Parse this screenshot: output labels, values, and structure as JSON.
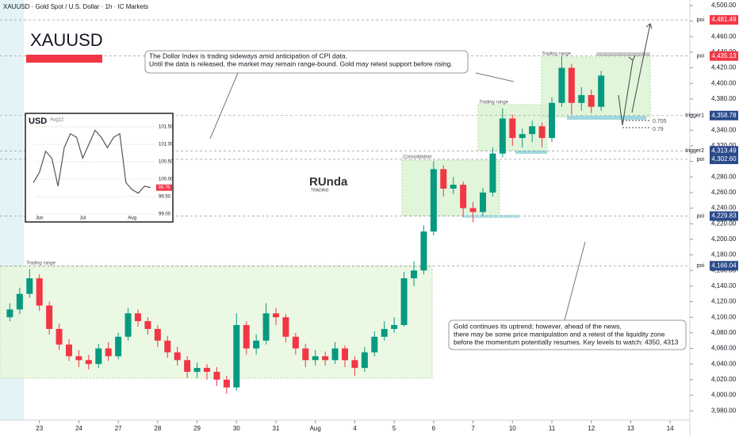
{
  "header": {
    "symbol_line": "XAUUSD · Gold Spot / U.S. Dollar · 1h · IC Markets",
    "symbol": "XAUUSD"
  },
  "logo": {
    "name": "RUnda",
    "tagline": "TRADING"
  },
  "chart_data": [
    {
      "type": "candlestick",
      "up_color": "#089981",
      "down_color": "#f23645",
      "xlim": [
        -1,
        16.5
      ],
      "ylim": [
        3968,
        4507
      ],
      "x": [
        -0.75,
        -0.5,
        -0.25,
        0,
        0.25,
        0.5,
        0.75,
        1,
        1.25,
        1.5,
        1.75,
        2,
        2.25,
        2.5,
        2.75,
        3,
        3.25,
        3.5,
        3.75,
        4,
        4.25,
        4.5,
        4.75,
        5,
        5.25,
        5.5,
        5.75,
        6,
        6.25,
        6.5,
        6.75,
        7,
        7.25,
        7.5,
        7.75,
        8,
        8.25,
        8.5,
        8.75,
        9,
        9.25,
        9.5,
        9.75,
        10,
        10.25,
        10.5,
        10.75,
        11,
        11.25,
        11.5,
        11.75,
        12,
        12.25,
        12.5,
        12.75,
        13,
        13.25,
        13.5,
        13.75,
        14,
        14.25
      ],
      "ohlc": [
        [
          4100,
          4118,
          4095,
          4110
        ],
        [
          4110,
          4138,
          4104,
          4130
        ],
        [
          4130,
          4162,
          4125,
          4150
        ],
        [
          4150,
          4155,
          4108,
          4115
        ],
        [
          4115,
          4120,
          4078,
          4085
        ],
        [
          4085,
          4092,
          4058,
          4065
        ],
        [
          4065,
          4072,
          4044,
          4050
        ],
        [
          4050,
          4058,
          4036,
          4045
        ],
        [
          4045,
          4052,
          4033,
          4040
        ],
        [
          4040,
          4066,
          4035,
          4060
        ],
        [
          4060,
          4068,
          4044,
          4050
        ],
        [
          4050,
          4080,
          4046,
          4075
        ],
        [
          4075,
          4112,
          4070,
          4105
        ],
        [
          4105,
          4110,
          4088,
          4095
        ],
        [
          4095,
          4100,
          4078,
          4085
        ],
        [
          4085,
          4090,
          4062,
          4070
        ],
        [
          4070,
          4076,
          4048,
          4055
        ],
        [
          4055,
          4062,
          4038,
          4045
        ],
        [
          4045,
          4050,
          4022,
          4030
        ],
        [
          4030,
          4042,
          4022,
          4035
        ],
        [
          4035,
          4040,
          4020,
          4030
        ],
        [
          4030,
          4036,
          4012,
          4020
        ],
        [
          4020,
          4025,
          4002,
          4010
        ],
        [
          4010,
          4105,
          4006,
          4090
        ],
        [
          4090,
          4095,
          4052,
          4060
        ],
        [
          4060,
          4078,
          4052,
          4070
        ],
        [
          4070,
          4118,
          4065,
          4105
        ],
        [
          4105,
          4112,
          4090,
          4100
        ],
        [
          4100,
          4104,
          4068,
          4075
        ],
        [
          4075,
          4080,
          4052,
          4060
        ],
        [
          4060,
          4066,
          4036,
          4045
        ],
        [
          4045,
          4058,
          4038,
          4050
        ],
        [
          4050,
          4056,
          4038,
          4045
        ],
        [
          4045,
          4068,
          4040,
          4060
        ],
        [
          4060,
          4064,
          4036,
          4045
        ],
        [
          4045,
          4050,
          4025,
          4035
        ],
        [
          4035,
          4062,
          4030,
          4055
        ],
        [
          4055,
          4082,
          4050,
          4075
        ],
        [
          4075,
          4095,
          4070,
          4085
        ],
        [
          4085,
          4100,
          4080,
          4090
        ],
        [
          4090,
          4158,
          4088,
          4150
        ],
        [
          4150,
          4172,
          4140,
          4160
        ],
        [
          4160,
          4218,
          4155,
          4210
        ],
        [
          4210,
          4300,
          4205,
          4290
        ],
        [
          4290,
          4295,
          4255,
          4265
        ],
        [
          4265,
          4280,
          4258,
          4270
        ],
        [
          4270,
          4274,
          4228,
          4240
        ],
        [
          4240,
          4248,
          4222,
          4235
        ],
        [
          4235,
          4266,
          4230,
          4260
        ],
        [
          4260,
          4318,
          4255,
          4310
        ],
        [
          4310,
          4368,
          4305,
          4355
        ],
        [
          4355,
          4360,
          4320,
          4330
        ],
        [
          4330,
          4342,
          4318,
          4335
        ],
        [
          4335,
          4352,
          4325,
          4345
        ],
        [
          4345,
          4350,
          4318,
          4330
        ],
        [
          4330,
          4382,
          4325,
          4375
        ],
        [
          4375,
          4435,
          4370,
          4420
        ],
        [
          4420,
          4425,
          4360,
          4375
        ],
        [
          4375,
          4395,
          4365,
          4385
        ],
        [
          4385,
          4392,
          4362,
          4370
        ],
        [
          4370,
          4416,
          4365,
          4410
        ]
      ],
      "xticks": [
        {
          "value": 0,
          "label": "23"
        },
        {
          "value": 1,
          "label": "24"
        },
        {
          "value": 2,
          "label": "27"
        },
        {
          "value": 3,
          "label": "28"
        },
        {
          "value": 4,
          "label": "29"
        },
        {
          "value": 5,
          "label": "30"
        },
        {
          "value": 6,
          "label": "31"
        },
        {
          "value": 7,
          "label": "Aug"
        },
        {
          "value": 8,
          "label": "4"
        },
        {
          "value": 9,
          "label": "5"
        },
        {
          "value": 10,
          "label": "6"
        },
        {
          "value": 11,
          "label": "7"
        },
        {
          "value": 12,
          "label": "10"
        },
        {
          "value": 13,
          "label": "11"
        },
        {
          "value": 14,
          "label": "12"
        },
        {
          "value": 15,
          "label": "13"
        },
        {
          "value": 16,
          "label": "14"
        }
      ],
      "yticks": [
        {
          "value": 3980,
          "label": "3,980.00"
        },
        {
          "value": 4000,
          "label": "4,000.00"
        },
        {
          "value": 4020,
          "label": "4,020.00"
        },
        {
          "value": 4040,
          "label": "4,040.00"
        },
        {
          "value": 4060,
          "label": "4,060.00"
        },
        {
          "value": 4080,
          "label": "4,080.00"
        },
        {
          "value": 4100,
          "label": "4,100.00"
        },
        {
          "value": 4120,
          "label": "4,120.00"
        },
        {
          "value": 4140,
          "label": "4,140.00"
        },
        {
          "value": 4160,
          "label": "4,160.00"
        },
        {
          "value": 4180,
          "label": "4,180.00"
        },
        {
          "value": 4200,
          "label": "4,200.00"
        },
        {
          "value": 4220,
          "label": "4,220.00"
        },
        {
          "value": 4240,
          "label": "4,240.00"
        },
        {
          "value": 4260,
          "label": "4,260.00"
        },
        {
          "value": 4280,
          "label": "4,280.00"
        },
        {
          "value": 4300,
          "label": "4,300.00"
        },
        {
          "value": 4320,
          "label": "4,320.00"
        },
        {
          "value": 4340,
          "label": "4,340.00"
        },
        {
          "value": 4360,
          "label": "4,360.00"
        },
        {
          "value": 4380,
          "label": "4,380.00"
        },
        {
          "value": 4400,
          "label": "4,400.00"
        },
        {
          "value": 4420,
          "label": "4,420.00"
        },
        {
          "value": 4440,
          "label": "4,440.00"
        },
        {
          "value": 4460,
          "label": "4,460.00"
        },
        {
          "value": 4480,
          "label": "4,480.00"
        },
        {
          "value": 4500,
          "label": "4,500.00"
        }
      ],
      "price_tags": [
        {
          "value": 4481.49,
          "label": "4,481.49",
          "color": "#f23645",
          "note": "poi"
        },
        {
          "value": 4435.13,
          "label": "4,435.13",
          "color": "#f23645",
          "note": "poi"
        },
        {
          "value": 4358.78,
          "label": "4,358.78",
          "color": "#2a4a8c",
          "note": "trigger1"
        },
        {
          "value": 4313.49,
          "label": "4,313.49",
          "color": "#2a4a8c",
          "note": "trigger2"
        },
        {
          "value": 4302.6,
          "label": "4,302.60",
          "color": "#2a4a8c",
          "note": "poi"
        },
        {
          "value": 4229.83,
          "label": "4,229.83",
          "color": "#2a4a8c",
          "note": "poi"
        },
        {
          "value": 4166.04,
          "label": "4,166.04",
          "color": "#2a4a8c",
          "note": "poi"
        }
      ],
      "zone_labels": [
        "Trading range",
        "Consolidation",
        "Trading range",
        "Trading range"
      ],
      "fib_labels": [
        "0.705",
        "0.79"
      ],
      "annotations": [
        [
          "The Dollar Index is trading sideways amid anticipation of CPI data.",
          "Until the data is released, the market may remain range-bound. Gold may retest support before rising."
        ],
        [
          "Gold continues its uptrend; however, ahead of the news,",
          "there may be some price manipulation and a retest of the liquidity zone",
          "before the momentum potentially resumes. Key levels to watch: 4350, 4313"
        ]
      ]
    },
    {
      "type": "line",
      "title": "USD",
      "subtitle": "Aug12",
      "color": "#555555",
      "categories": [
        null,
        "Jun",
        null,
        null,
        null,
        null,
        null,
        null,
        "Jul",
        null,
        null,
        null,
        null,
        null,
        null,
        null,
        "Aug",
        null,
        null,
        null
      ],
      "values": [
        99.9,
        100.2,
        100.8,
        100.6,
        99.8,
        100.9,
        101.3,
        101.2,
        100.6,
        101.0,
        101.4,
        101.2,
        100.9,
        101.2,
        101.3,
        99.9,
        99.7,
        99.6,
        99.8,
        99.76
      ],
      "last": 99.76,
      "ylim": [
        98.89,
        101.77
      ],
      "yticks": [
        {
          "value": 99,
          "label": "99.00"
        },
        {
          "value": 99.5,
          "label": "99.50"
        },
        {
          "value": 100,
          "label": "100.00"
        },
        {
          "value": 100.5,
          "label": "100.50"
        },
        {
          "value": 101,
          "label": "101.00"
        },
        {
          "value": 101.5,
          "label": "101.50"
        }
      ]
    }
  ]
}
